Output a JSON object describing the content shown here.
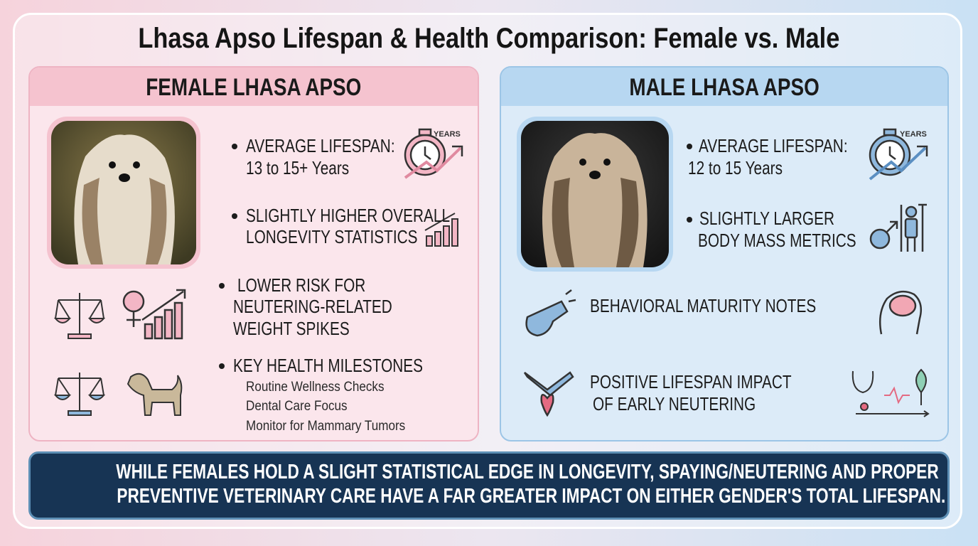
{
  "title": "Lhasa Apso Lifespan & Health Comparison: Female vs. Male",
  "female": {
    "heading": "FEMALE LHASA APSO",
    "lifespan": [
      "AVERAGE LIFESPAN:",
      "13 to 15+ Years"
    ],
    "icon_label": "YEARS",
    "longevity": [
      "SLIGHTLY HIGHER OVERALL",
      "LONGEVITY STATISTICS"
    ],
    "risk": [
      "LOWER RISK FOR",
      "NEUTERING-RELATED",
      "WEIGHT SPIKES"
    ],
    "milestones": {
      "heading": "KEY HEALTH MILESTONES",
      "items": [
        "Routine Wellness Checks",
        "Dental Care Focus",
        "Monitor for Mammary Tumors"
      ]
    }
  },
  "male": {
    "heading": "MALE LHASA APSO",
    "lifespan": [
      "AVERAGE LIFESPAN:",
      "12 to 15 Years"
    ],
    "icon_label": "YEARS",
    "body_mass": [
      "SLIGHTLY LARGER",
      "BODY MASS METRICS"
    ],
    "behavior": "BEHAVIORAL MATURITY NOTES",
    "neutering": [
      "POSITIVE LIFESPAN IMPACT",
      "OF EARLY NEUTERING"
    ]
  },
  "summary": [
    "WHILE FEMALES HOLD A SLIGHT STATISTICAL EDGE IN LONGEVITY, SPAYING/NEUTERING AND PROPER",
    "PREVENTIVE VETERINARY CARE HAVE A FAR GREATER IMPACT ON EITHER GENDER'S TOTAL LIFESPAN."
  ]
}
